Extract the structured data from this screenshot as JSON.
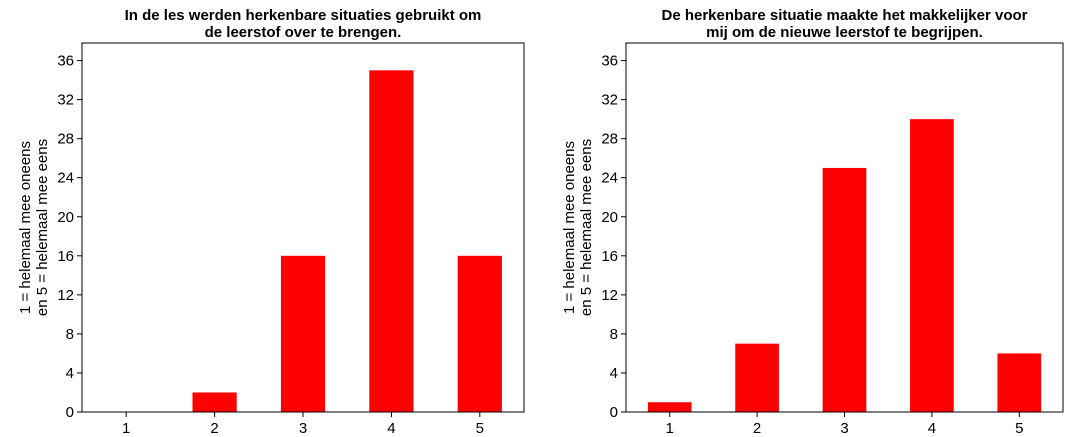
{
  "chart_data": [
    {
      "type": "bar",
      "title": [
        "In de les werden herkenbare situaties gebruikt om",
        "de leerstof over te brengen."
      ],
      "ylabel": [
        "1 = helemaal mee oneens",
        "en 5 = helemaal mee eens"
      ],
      "categories": [
        "1",
        "2",
        "3",
        "4",
        "5"
      ],
      "values": [
        0,
        2,
        16,
        35,
        16
      ],
      "color": "#ff0000",
      "ylim": [
        0,
        37.8
      ],
      "yticks": [
        0,
        4,
        8,
        12,
        16,
        20,
        24,
        28,
        32,
        36
      ]
    },
    {
      "type": "bar",
      "title": [
        "De herkenbare situatie maakte het makkelijker voor",
        "mij om de nieuwe leerstof te begrijpen."
      ],
      "ylabel": [
        "1 = helemaal mee oneens",
        "en 5 = helemaal mee eens"
      ],
      "categories": [
        "1",
        "2",
        "3",
        "4",
        "5"
      ],
      "values": [
        1,
        7,
        25,
        30,
        6
      ],
      "color": "#ff0000",
      "ylim": [
        0,
        37.8
      ],
      "yticks": [
        0,
        4,
        8,
        12,
        16,
        20,
        24,
        28,
        32,
        36
      ]
    }
  ]
}
